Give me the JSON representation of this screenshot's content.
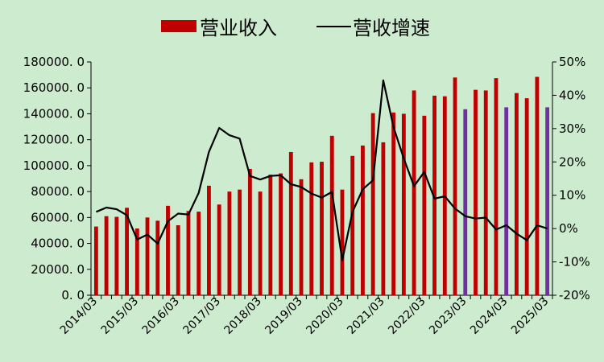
{
  "chart_data": {
    "type": "bar",
    "legend": {
      "position": "top",
      "items": [
        {
          "label": "营业收入",
          "kind": "bar",
          "color": "#c00000"
        },
        {
          "label": "营收增速",
          "kind": "line",
          "color": "#000000"
        }
      ]
    },
    "colors": {
      "bar": "#c00000",
      "bar_highlight": "#7030a0",
      "line": "#000000",
      "background": "#cdeccf"
    },
    "ylim": [
      0,
      180000
    ],
    "y_ticks": [
      "0. 0",
      "20000. 0",
      "40000. 0",
      "60000. 0",
      "80000. 0",
      "100000. 0",
      "120000. 0",
      "140000. 0",
      "160000. 0",
      "180000. 0"
    ],
    "y2lim": [
      -20,
      50
    ],
    "y2_ticks": [
      "-20%",
      "-10%",
      "0%",
      "10%",
      "20%",
      "30%",
      "40%",
      "50%"
    ],
    "x_ticks": [
      "2014/03",
      "2015/03",
      "2016/03",
      "2017/03",
      "2018/03",
      "2019/03",
      "2020/03",
      "2021/03",
      "2022/03",
      "2023/03",
      "2024/03",
      "2025/03"
    ],
    "x_tick_start_index": 0,
    "x_tick_every": 4,
    "grid": false,
    "series": [
      {
        "name": "营业收入",
        "type": "bar",
        "values": [
          53000,
          61000,
          60500,
          67500,
          51500,
          60000,
          57500,
          69000,
          54000,
          65000,
          64500,
          84500,
          70000,
          80000,
          81500,
          97500,
          80000,
          93000,
          94000,
          110500,
          89500,
          102500,
          103000,
          123000,
          81500,
          107500,
          115500,
          140500,
          118000,
          141000,
          140000,
          158000,
          138500,
          154000,
          153500,
          168000,
          143500,
          158500,
          158000,
          167500,
          145000,
          156000,
          152000,
          168500,
          145000
        ],
        "highlight_indices": [
          36,
          40,
          44
        ]
      },
      {
        "name": "营收增速",
        "type": "line",
        "axis": "right",
        "values": [
          5.0,
          6.3,
          5.8,
          4.0,
          -3.3,
          -1.8,
          -4.5,
          2.2,
          4.5,
          4.2,
          10.7,
          23.0,
          30.2,
          28.0,
          27.0,
          15.8,
          14.7,
          15.8,
          16.0,
          13.3,
          12.5,
          10.5,
          9.3,
          11.0,
          -9.5,
          5.0,
          11.8,
          14.5,
          44.5,
          30.5,
          21.0,
          12.7,
          17.0,
          9.0,
          9.7,
          6.0,
          3.7,
          3.0,
          3.3,
          -0.3,
          1.0,
          -1.5,
          -3.5,
          1.0,
          0.0
        ]
      }
    ]
  }
}
